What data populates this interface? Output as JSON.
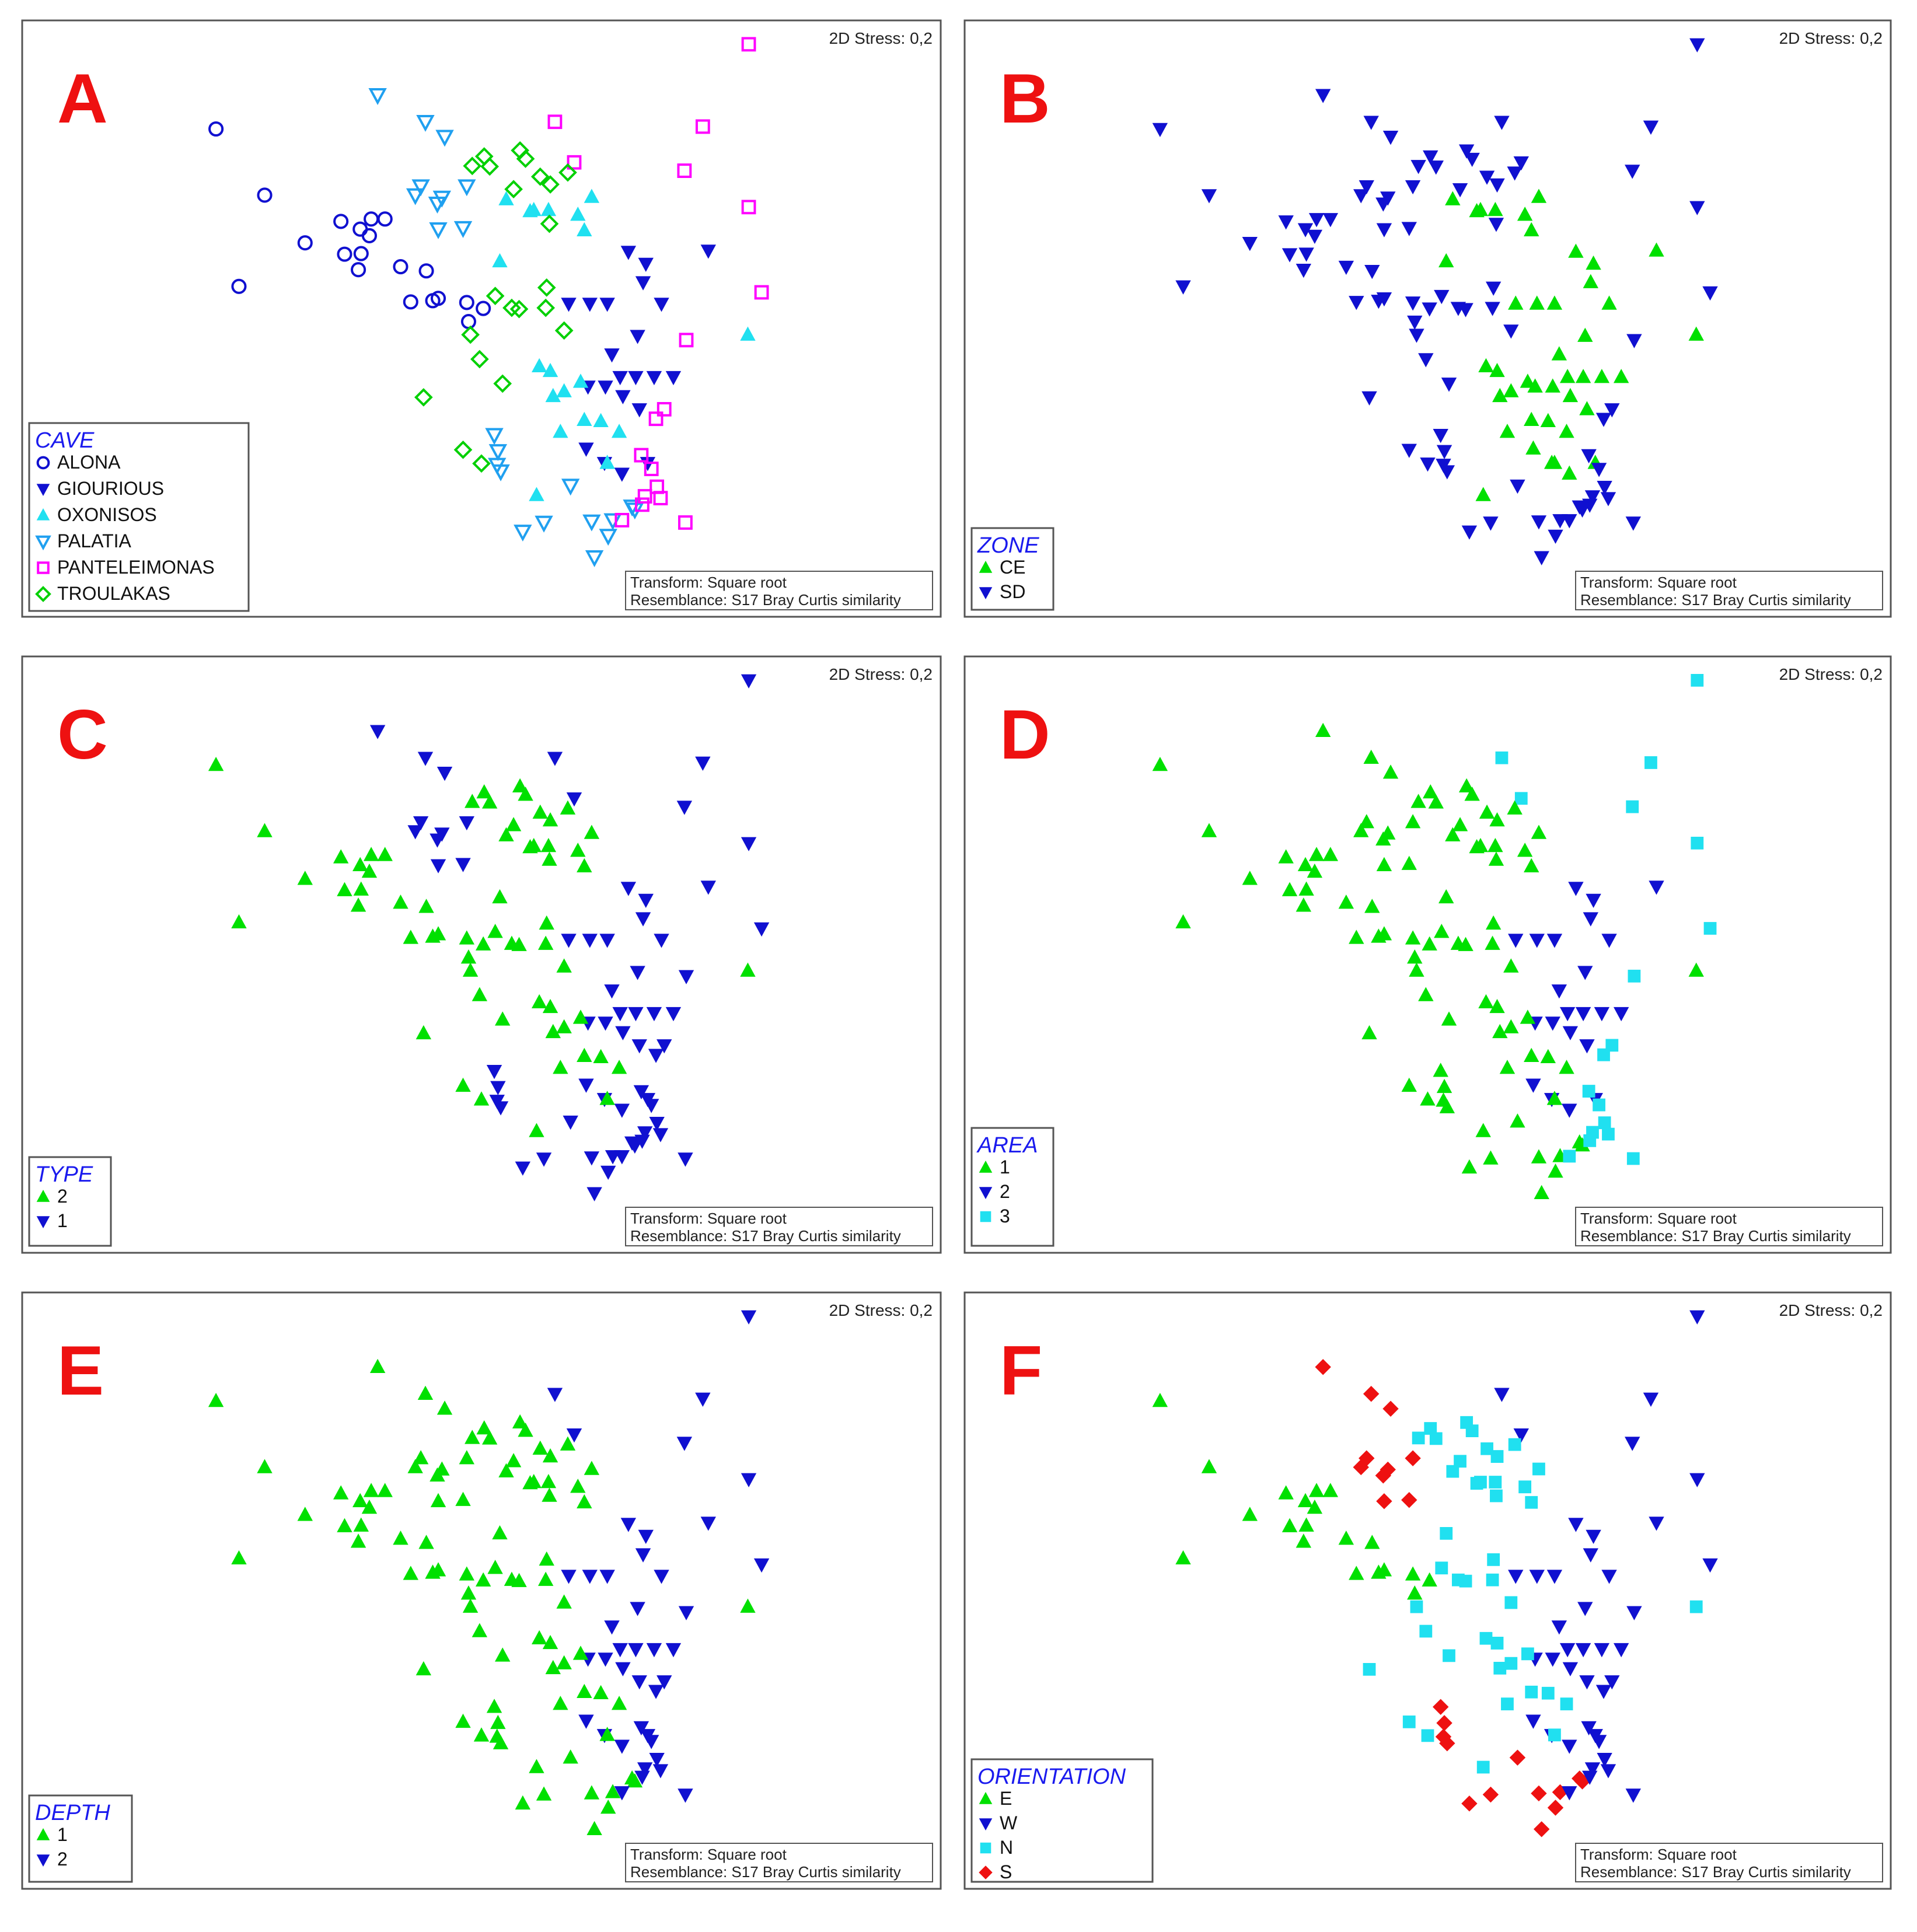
{
  "figure": {
    "stress_label": "2D Stress: 0,2",
    "transform_label": "Transform: Square root",
    "resemblance_label": "Resemblance: S17 Bray Curtis similarity"
  },
  "styles": {
    "CE": {
      "shape": "triangle-up",
      "color": "#00e000",
      "filled": true
    },
    "SD": {
      "shape": "triangle-down",
      "color": "#1010d0",
      "filled": true
    },
    "ALONA": {
      "shape": "circle",
      "color": "#1010d0",
      "filled": false
    },
    "GIOURIOUS": {
      "shape": "triangle-down",
      "color": "#1010d0",
      "filled": true
    },
    "OXONISOS": {
      "shape": "triangle-up",
      "color": "#20e0f0",
      "filled": true
    },
    "PALATIA": {
      "shape": "triangle-down",
      "color": "#20a0f0",
      "filled": false
    },
    "PANTELEIMONAS": {
      "shape": "square",
      "color": "#ff00ff",
      "filled": false
    },
    "TROULAKAS": {
      "shape": "diamond",
      "color": "#00d000",
      "filled": false
    }
  },
  "chart_data": [
    {
      "type": "scatter",
      "panel_letter": "A",
      "legend_title": "CAVE",
      "group_order": [
        "ALONA",
        "GIOURIOUS",
        "OXONISOS",
        "PALATIA",
        "PANTELEIMONAS",
        "TROULAKAS"
      ],
      "point_groups": [
        "ALONA",
        "ALONA",
        "ALONA",
        "ALONA",
        "ALONA",
        "ALONA",
        "ALONA",
        "ALONA",
        "ALONA",
        "ALONA",
        "ALONA",
        "ALONA",
        "ALONA",
        "ALONA",
        "ALONA",
        "ALONA",
        "ALONA",
        "ALONA",
        "ALONA",
        "ALONA",
        "GIOURIOUS",
        "GIOURIOUS",
        "GIOURIOUS",
        "GIOURIOUS",
        "GIOURIOUS",
        "GIOURIOUS",
        "GIOURIOUS",
        "GIOURIOUS",
        "GIOURIOUS",
        "GIOURIOUS",
        "GIOURIOUS",
        "GIOURIOUS",
        "GIOURIOUS",
        "GIOURIOUS",
        "GIOURIOUS",
        "GIOURIOUS",
        "GIOURIOUS",
        "GIOURIOUS",
        "GIOURIOUS",
        "GIOURIOUS",
        "GIOURIOUS",
        "GIOURIOUS",
        "OXONISOS",
        "OXONISOS",
        "OXONISOS",
        "OXONISOS",
        "OXONISOS",
        "OXONISOS",
        "OXONISOS",
        "OXONISOS",
        "OXONISOS",
        "OXONISOS",
        "OXONISOS",
        "OXONISOS",
        "OXONISOS",
        "OXONISOS",
        "OXONISOS",
        "OXONISOS",
        "OXONISOS",
        "OXONISOS",
        "OXONISOS",
        "OXONISOS",
        "PALATIA",
        "PALATIA",
        "PALATIA",
        "PALATIA",
        "PALATIA",
        "PALATIA",
        "PALATIA",
        "PALATIA",
        "PALATIA",
        "PALATIA",
        "PALATIA",
        "PALATIA",
        "PALATIA",
        "PALATIA",
        "PALATIA",
        "PALATIA",
        "PALATIA",
        "PALATIA",
        "PALATIA",
        "PALATIA",
        "PALATIA",
        "PALATIA",
        "PALATIA",
        "PANTELEIMONAS",
        "PANTELEIMONAS",
        "PANTELEIMONAS",
        "PANTELEIMONAS",
        "PANTELEIMONAS",
        "PANTELEIMONAS",
        "PANTELEIMONAS",
        "PANTELEIMONAS",
        "PANTELEIMONAS",
        "PANTELEIMONAS",
        "PANTELEIMONAS",
        "PANTELEIMONAS",
        "PANTELEIMONAS",
        "PANTELEIMONAS",
        "PANTELEIMONAS",
        "PANTELEIMONAS",
        "PANTELEIMONAS",
        "PANTELEIMONAS",
        "TROULAKAS",
        "TROULAKAS",
        "TROULAKAS",
        "TROULAKAS",
        "TROULAKAS",
        "TROULAKAS",
        "TROULAKAS",
        "TROULAKAS",
        "TROULAKAS",
        "TROULAKAS",
        "TROULAKAS",
        "TROULAKAS",
        "TROULAKAS",
        "TROULAKAS",
        "TROULAKAS",
        "TROULAKAS",
        "TROULAKAS",
        "TROULAKAS",
        "TROULAKAS",
        "TROULAKAS",
        "TROULAKAS",
        "TROULAKAS"
      ]
    },
    {
      "type": "scatter",
      "panel_letter": "B",
      "legend_title": "ZONE",
      "group_order": [
        "CE",
        "SD"
      ],
      "point_groups": [
        "SD",
        "SD",
        "SD",
        "SD",
        "SD",
        "SD",
        "SD",
        "SD",
        "SD",
        "SD",
        "SD",
        "SD",
        "SD",
        "SD",
        "SD",
        "SD",
        "SD",
        "SD",
        "SD",
        "SD",
        "CE",
        "CE",
        "CE",
        "CE",
        "CE",
        "CE",
        "CE",
        "CE",
        "CE",
        "CE",
        "CE",
        "CE",
        "CE",
        "CE",
        "CE",
        "CE",
        "CE",
        "CE",
        "CE",
        "CE",
        "CE",
        "CE",
        "CE",
        "CE",
        "CE",
        "CE",
        "CE",
        "CE",
        "CE",
        "CE",
        "CE",
        "CE",
        "CE",
        "CE",
        "CE",
        "CE",
        "CE",
        "CE",
        "CE",
        "CE",
        "CE",
        "CE",
        "SD",
        "SD",
        "SD",
        "SD",
        "SD",
        "SD",
        "SD",
        "SD",
        "SD",
        "SD",
        "SD",
        "SD",
        "SD",
        "SD",
        "SD",
        "SD",
        "SD",
        "SD",
        "SD",
        "SD",
        "SD",
        "SD",
        "SD",
        "SD",
        "SD",
        "SD",
        "SD",
        "SD",
        "SD",
        "SD",
        "SD",
        "SD",
        "SD",
        "SD",
        "SD",
        "SD",
        "SD",
        "SD",
        "SD",
        "SD",
        "SD",
        "SD",
        "SD",
        "SD",
        "SD",
        "SD",
        "SD",
        "SD",
        "SD",
        "SD",
        "SD",
        "SD",
        "SD",
        "SD",
        "SD",
        "SD",
        "SD",
        "SD",
        "SD",
        "SD",
        "SD",
        "SD",
        "SD"
      ]
    },
    {
      "type": "scatter",
      "panel_letter": "C",
      "legend_title": "TYPE",
      "group_order": [
        "2",
        "1"
      ],
      "point_groups": [
        "2",
        "2",
        "2",
        "2",
        "2",
        "2",
        "2",
        "2",
        "2",
        "2",
        "2",
        "2",
        "2",
        "2",
        "2",
        "2",
        "2",
        "2",
        "2",
        "2",
        "1",
        "1",
        "1",
        "1",
        "1",
        "1",
        "1",
        "1",
        "1",
        "1",
        "1",
        "1",
        "1",
        "1",
        "1",
        "1",
        "1",
        "1",
        "1",
        "1",
        "1",
        "1",
        "2",
        "2",
        "2",
        "2",
        "2",
        "2",
        "2",
        "2",
        "2",
        "2",
        "2",
        "2",
        "2",
        "2",
        "2",
        "2",
        "2",
        "2",
        "2",
        "2",
        "1",
        "1",
        "1",
        "1",
        "1",
        "1",
        "1",
        "1",
        "1",
        "1",
        "1",
        "1",
        "1",
        "1",
        "1",
        "1",
        "1",
        "1",
        "1",
        "1",
        "1",
        "1",
        "1",
        "1",
        "1",
        "1",
        "1",
        "1",
        "1",
        "1",
        "1",
        "1",
        "1",
        "1",
        "1",
        "1",
        "1",
        "1",
        "1",
        "1",
        "1",
        "2",
        "2",
        "2",
        "2",
        "2",
        "2",
        "2",
        "2",
        "2",
        "2",
        "2",
        "2",
        "2",
        "2",
        "2",
        "2",
        "2",
        "2",
        "2",
        "2",
        "2",
        "2"
      ]
    },
    {
      "type": "scatter",
      "panel_letter": "D",
      "legend_title": "AREA",
      "group_order": [
        "1",
        "2",
        "3"
      ],
      "point_groups": [
        "1",
        "1",
        "1",
        "1",
        "1",
        "1",
        "1",
        "1",
        "1",
        "1",
        "1",
        "1",
        "1",
        "1",
        "1",
        "1",
        "1",
        "1",
        "1",
        "1",
        "2",
        "2",
        "2",
        "2",
        "2",
        "2",
        "2",
        "2",
        "2",
        "2",
        "2",
        "2",
        "2",
        "2",
        "2",
        "2",
        "2",
        "2",
        "2",
        "2",
        "2",
        "2",
        "1",
        "1",
        "1",
        "1",
        "1",
        "1",
        "1",
        "1",
        "1",
        "1",
        "1",
        "1",
        "1",
        "1",
        "1",
        "1",
        "1",
        "1",
        "1",
        "1",
        "1",
        "1",
        "1",
        "1",
        "1",
        "1",
        "1",
        "1",
        "1",
        "1",
        "1",
        "1",
        "1",
        "1",
        "1",
        "1",
        "1",
        "1",
        "1",
        "1",
        "1",
        "1",
        "1",
        "3",
        "3",
        "3",
        "3",
        "3",
        "3",
        "3",
        "3",
        "3",
        "3",
        "3",
        "3",
        "3",
        "3",
        "3",
        "3",
        "3",
        "3",
        "1",
        "1",
        "1",
        "1",
        "1",
        "1",
        "1",
        "1",
        "1",
        "1",
        "1",
        "1",
        "1",
        "1",
        "1",
        "1",
        "1",
        "1",
        "1",
        "1",
        "1",
        "1"
      ]
    },
    {
      "type": "scatter",
      "panel_letter": "E",
      "legend_title": "DEPTH",
      "group_order": [
        "1",
        "2"
      ],
      "point_groups": [
        "1",
        "1",
        "1",
        "1",
        "1",
        "1",
        "1",
        "1",
        "1",
        "1",
        "1",
        "1",
        "1",
        "1",
        "1",
        "1",
        "1",
        "1",
        "1",
        "1",
        "2",
        "2",
        "2",
        "2",
        "2",
        "2",
        "2",
        "2",
        "2",
        "2",
        "2",
        "2",
        "2",
        "2",
        "2",
        "2",
        "2",
        "2",
        "2",
        "2",
        "2",
        "2",
        "1",
        "1",
        "1",
        "1",
        "1",
        "1",
        "1",
        "1",
        "1",
        "1",
        "1",
        "1",
        "1",
        "1",
        "1",
        "1",
        "1",
        "1",
        "1",
        "1",
        "1",
        "1",
        "1",
        "1",
        "1",
        "1",
        "1",
        "1",
        "1",
        "1",
        "1",
        "1",
        "1",
        "1",
        "1",
        "1",
        "1",
        "1",
        "1",
        "1",
        "1",
        "1",
        "1",
        "2",
        "2",
        "2",
        "2",
        "2",
        "2",
        "2",
        "2",
        "2",
        "2",
        "2",
        "2",
        "2",
        "2",
        "2",
        "2",
        "2",
        "2",
        "1",
        "1",
        "1",
        "1",
        "1",
        "1",
        "1",
        "1",
        "1",
        "1",
        "1",
        "1",
        "1",
        "1",
        "1",
        "1",
        "1",
        "1",
        "1",
        "1",
        "1",
        "1"
      ]
    },
    {
      "type": "scatter",
      "panel_letter": "F",
      "legend_title": "ORIENTATION",
      "group_order": [
        "E",
        "W",
        "N",
        "S"
      ],
      "point_groups": [
        "E",
        "E",
        "E",
        "E",
        "E",
        "E",
        "E",
        "E",
        "E",
        "E",
        "E",
        "E",
        "E",
        "E",
        "E",
        "E",
        "E",
        "E",
        "E",
        "E",
        "W",
        "W",
        "W",
        "W",
        "W",
        "W",
        "W",
        "W",
        "W",
        "W",
        "W",
        "W",
        "W",
        "W",
        "W",
        "W",
        "W",
        "W",
        "W",
        "W",
        "W",
        "W",
        "N",
        "N",
        "N",
        "N",
        "N",
        "N",
        "N",
        "N",
        "N",
        "N",
        "N",
        "N",
        "N",
        "N",
        "N",
        "N",
        "N",
        "N",
        "N",
        "N",
        "S",
        "S",
        "S",
        "S",
        "S",
        "S",
        "S",
        "S",
        "S",
        "S",
        "S",
        "S",
        "S",
        "S",
        "S",
        "S",
        "S",
        "S",
        "S",
        "S",
        "S",
        "S",
        "S",
        "W",
        "W",
        "W",
        "W",
        "W",
        "W",
        "W",
        "W",
        "W",
        "W",
        "W",
        "W",
        "W",
        "W",
        "W",
        "W",
        "W",
        "W",
        "N",
        "N",
        "N",
        "N",
        "N",
        "N",
        "N",
        "N",
        "N",
        "N",
        "N",
        "N",
        "N",
        "N",
        "N",
        "N",
        "N",
        "N",
        "N",
        "N",
        "N",
        "N"
      ]
    }
  ]
}
